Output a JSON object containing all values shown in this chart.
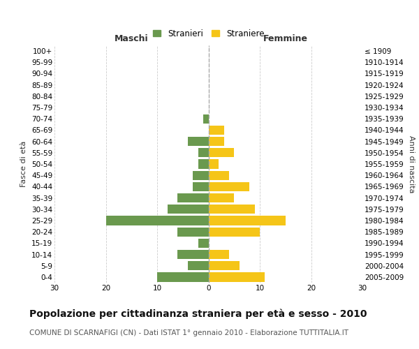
{
  "age_groups": [
    "0-4",
    "5-9",
    "10-14",
    "15-19",
    "20-24",
    "25-29",
    "30-34",
    "35-39",
    "40-44",
    "45-49",
    "50-54",
    "55-59",
    "60-64",
    "65-69",
    "70-74",
    "75-79",
    "80-84",
    "85-89",
    "90-94",
    "95-99",
    "100+"
  ],
  "birth_years": [
    "2005-2009",
    "2000-2004",
    "1995-1999",
    "1990-1994",
    "1985-1989",
    "1980-1984",
    "1975-1979",
    "1970-1974",
    "1965-1969",
    "1960-1964",
    "1955-1959",
    "1950-1954",
    "1945-1949",
    "1940-1944",
    "1935-1939",
    "1930-1934",
    "1925-1929",
    "1920-1924",
    "1915-1919",
    "1910-1914",
    "≤ 1909"
  ],
  "maschi": [
    10,
    4,
    6,
    2,
    6,
    20,
    8,
    6,
    3,
    3,
    2,
    2,
    4,
    0,
    1,
    0,
    0,
    0,
    0,
    0,
    0
  ],
  "femmine": [
    11,
    6,
    4,
    0,
    10,
    15,
    9,
    5,
    8,
    4,
    2,
    5,
    3,
    3,
    0,
    0,
    0,
    0,
    0,
    0,
    0
  ],
  "maschi_color": "#6a994e",
  "femmine_color": "#f5c518",
  "title": "Popolazione per cittadinanza straniera per età e sesso - 2010",
  "subtitle": "COMUNE DI SCARNAFIGI (CN) - Dati ISTAT 1° gennaio 2010 - Elaborazione TUTTITALIA.IT",
  "xlabel_left": "Maschi",
  "xlabel_right": "Femmine",
  "ylabel_left": "Fasce di età",
  "ylabel_right": "Anni di nascita",
  "legend_maschi": "Stranieri",
  "legend_femmine": "Straniere",
  "xlim": 30,
  "background_color": "#ffffff",
  "grid_color": "#cccccc",
  "bar_height": 0.82,
  "center_line_color": "#aaaaaa",
  "title_fontsize": 10,
  "subtitle_fontsize": 7.5,
  "header_fontsize": 9,
  "label_fontsize": 8,
  "tick_fontsize": 7.5
}
